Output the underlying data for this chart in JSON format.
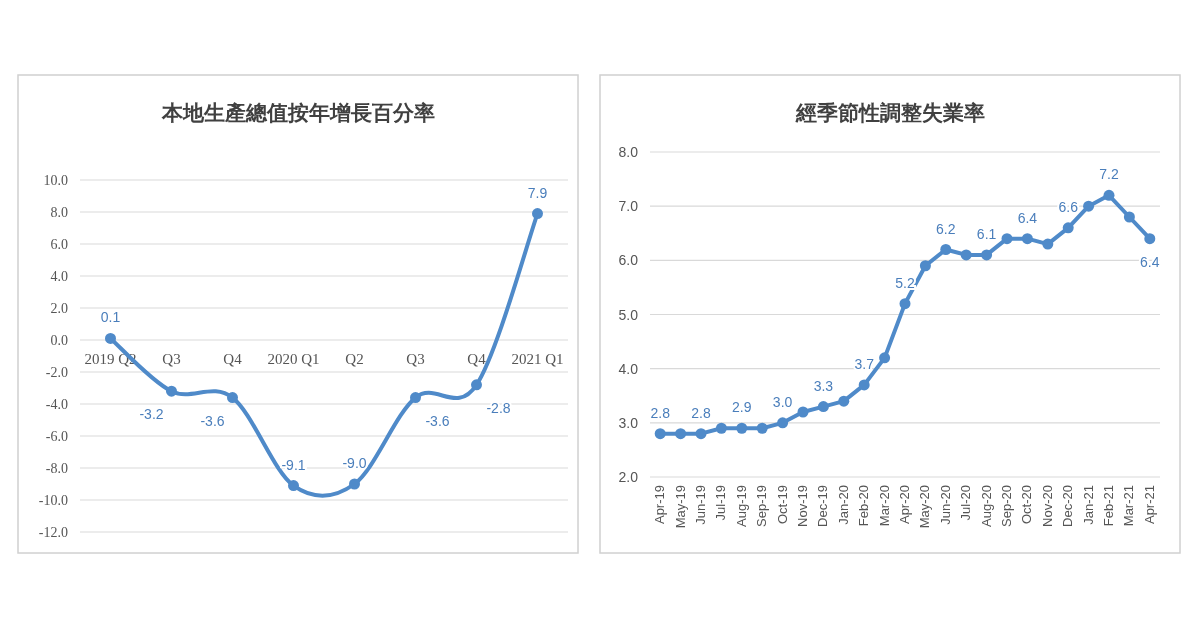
{
  "chart_data": [
    {
      "type": "line",
      "title": "本地生產總值按年增長百分率",
      "categories": [
        "2019 Q2",
        "Q3",
        "Q4",
        "2020 Q1",
        "Q2",
        "Q3",
        "Q4",
        "2021 Q1"
      ],
      "series": [
        {
          "color": "#4f8ac9",
          "values": [
            0.1,
            -3.2,
            -3.6,
            -9.1,
            -9.0,
            -3.6,
            -2.8,
            7.9
          ],
          "value_labels": [
            "0.1",
            "-3.2",
            "-3.6",
            "-9.1",
            "-9.0",
            "-3.6",
            "-2.8",
            "7.9"
          ]
        }
      ],
      "ylim": [
        -12,
        10
      ],
      "yticks": [
        {
          "value": -12,
          "label": "-12.0"
        },
        {
          "value": -10,
          "label": "-10.0"
        },
        {
          "value": -8,
          "label": "-8.0"
        },
        {
          "value": -6,
          "label": "-6.0"
        },
        {
          "value": -4,
          "label": "-4.0"
        },
        {
          "value": -2,
          "label": "-2.0"
        },
        {
          "value": 0,
          "label": "0.0"
        },
        {
          "value": 2,
          "label": "2.0"
        },
        {
          "value": 4,
          "label": "4.0"
        },
        {
          "value": 6,
          "label": "6.0"
        },
        {
          "value": 8,
          "label": "8.0"
        },
        {
          "value": 10,
          "label": "10.0"
        }
      ],
      "grid": "y",
      "marker": "circle"
    },
    {
      "type": "line",
      "title": "經季節性調整失業率",
      "categories": [
        "Apr-19",
        "May-19",
        "Jun-19",
        "Jul-19",
        "Aug-19",
        "Sep-19",
        "Oct-19",
        "Nov-19",
        "Dec-19",
        "Jan-20",
        "Feb-20",
        "Mar-20",
        "Apr-20",
        "May-20",
        "Jun-20",
        "Jul-20",
        "Aug-20",
        "Sep-20",
        "Oct-20",
        "Nov-20",
        "Dec-20",
        "Jan-21",
        "Feb-21",
        "Mar-21",
        "Apr-21"
      ],
      "series": [
        {
          "color": "#4f8ac9",
          "values": [
            2.8,
            2.8,
            2.8,
            2.9,
            2.9,
            2.9,
            3.0,
            3.2,
            3.3,
            3.4,
            3.7,
            4.2,
            5.2,
            5.9,
            6.2,
            6.1,
            6.1,
            6.4,
            6.4,
            6.3,
            6.6,
            7.0,
            7.2,
            6.8,
            6.4
          ],
          "value_labels": [
            "2.8",
            null,
            "2.8",
            null,
            "2.9",
            null,
            "3.0",
            null,
            "3.3",
            null,
            "3.7",
            null,
            "5.2",
            null,
            "6.2",
            null,
            "6.1",
            null,
            "6.4",
            null,
            "6.6",
            null,
            "7.2",
            null,
            "6.4"
          ]
        }
      ],
      "ylim": [
        2,
        8
      ],
      "yticks": [
        {
          "value": 2,
          "label": "2.0"
        },
        {
          "value": 3,
          "label": "3.0"
        },
        {
          "value": 4,
          "label": "4.0"
        },
        {
          "value": 5,
          "label": "5.0"
        },
        {
          "value": 6,
          "label": "6.0"
        },
        {
          "value": 7,
          "label": "7.0"
        },
        {
          "value": 8,
          "label": "8.0"
        }
      ],
      "grid": "y",
      "marker": "circle"
    }
  ]
}
